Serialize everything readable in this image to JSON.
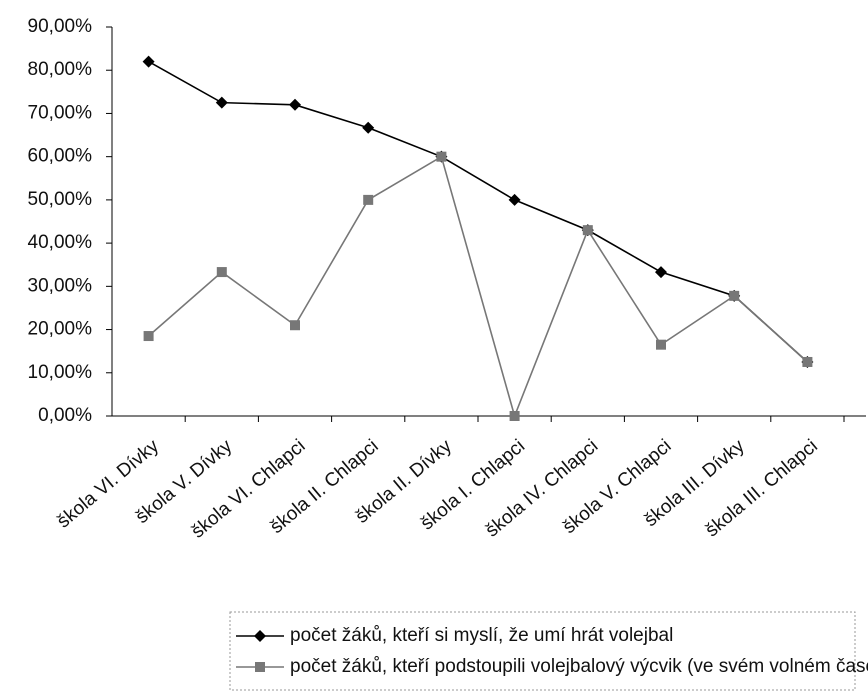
{
  "chart_data": {
    "type": "line",
    "categories": [
      "škola VI. Dívky",
      "škola V. Dívky",
      "škola VI. Chlapci",
      "škola II. Chlapci",
      "škola II. Dívky",
      "škola I. Chlapci",
      "škola IV. Chlapci",
      "škola V. Chlapci",
      "škola III. Dívky",
      "škola III. Chlapci"
    ],
    "series": [
      {
        "name": "počet žáků, kteří si myslí, že umí hrát volejbal",
        "color": "#000000",
        "marker": "diamond",
        "values": [
          82,
          72.5,
          72,
          66.7,
          60,
          50,
          43,
          33.3,
          27.8,
          12.5
        ]
      },
      {
        "name": "počet žáků, kteří podstoupili volejbalový výcvik (ve svém volném čase)",
        "color": "#777777",
        "marker": "square",
        "values": [
          18.5,
          33.3,
          21,
          50,
          60,
          0,
          43,
          16.5,
          27.8,
          12.5
        ]
      }
    ],
    "ylim": [
      0,
      90
    ],
    "yticks": [
      {
        "value": 0,
        "label": "0,00%"
      },
      {
        "value": 10,
        "label": "10,00%"
      },
      {
        "value": 20,
        "label": "20,00%"
      },
      {
        "value": 30,
        "label": "30,00%"
      },
      {
        "value": 40,
        "label": "40,00%"
      },
      {
        "value": 50,
        "label": "50,00%"
      },
      {
        "value": 60,
        "label": "60,00%"
      },
      {
        "value": 70,
        "label": "70,00%"
      },
      {
        "value": 80,
        "label": "80,00%"
      },
      {
        "value": 90,
        "label": "90,00%"
      }
    ],
    "grid": false,
    "legend": "bottom"
  }
}
